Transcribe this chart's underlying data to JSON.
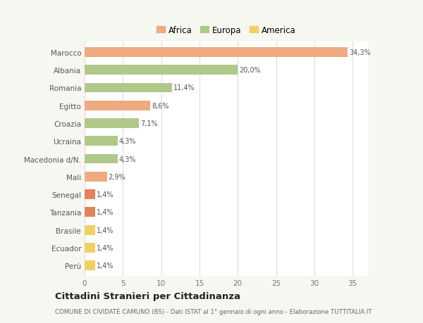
{
  "categories": [
    "Marocco",
    "Albania",
    "Romania",
    "Egitto",
    "Croazia",
    "Ucraina",
    "Macedonia d/N.",
    "Mali",
    "Senegal",
    "Tanzania",
    "Brasile",
    "Ecuador",
    "Perù"
  ],
  "values": [
    34.3,
    20.0,
    11.4,
    8.6,
    7.1,
    4.3,
    4.3,
    2.9,
    1.4,
    1.4,
    1.4,
    1.4,
    1.4
  ],
  "labels": [
    "34,3%",
    "20,0%",
    "11,4%",
    "8,6%",
    "7,1%",
    "4,3%",
    "4,3%",
    "2,9%",
    "1,4%",
    "1,4%",
    "1,4%",
    "1,4%",
    "1,4%"
  ],
  "colors": [
    "#eeaa80",
    "#b0c88a",
    "#b0c88a",
    "#eeaa80",
    "#b0c88a",
    "#b0c88a",
    "#b0c88a",
    "#eeaa80",
    "#e0835a",
    "#e0835a",
    "#f0d060",
    "#f0d060",
    "#f0d060"
  ],
  "legend": [
    {
      "label": "Africa",
      "color": "#eeaa80"
    },
    {
      "label": "Europa",
      "color": "#b0c88a"
    },
    {
      "label": "America",
      "color": "#f0d060"
    }
  ],
  "title": "Cittadini Stranieri per Cittadinanza",
  "subtitle": "COMUNE DI CIVIDATE CAMUNO (BS) - Dati ISTAT al 1° gennaio di ogni anno - Elaborazione TUTTITALIA.IT",
  "xlim": [
    0,
    37
  ],
  "xticks": [
    0,
    5,
    10,
    15,
    20,
    25,
    30,
    35
  ],
  "background_color": "#f7f7f2",
  "bar_background": "#ffffff",
  "grid_color": "#dddddd"
}
